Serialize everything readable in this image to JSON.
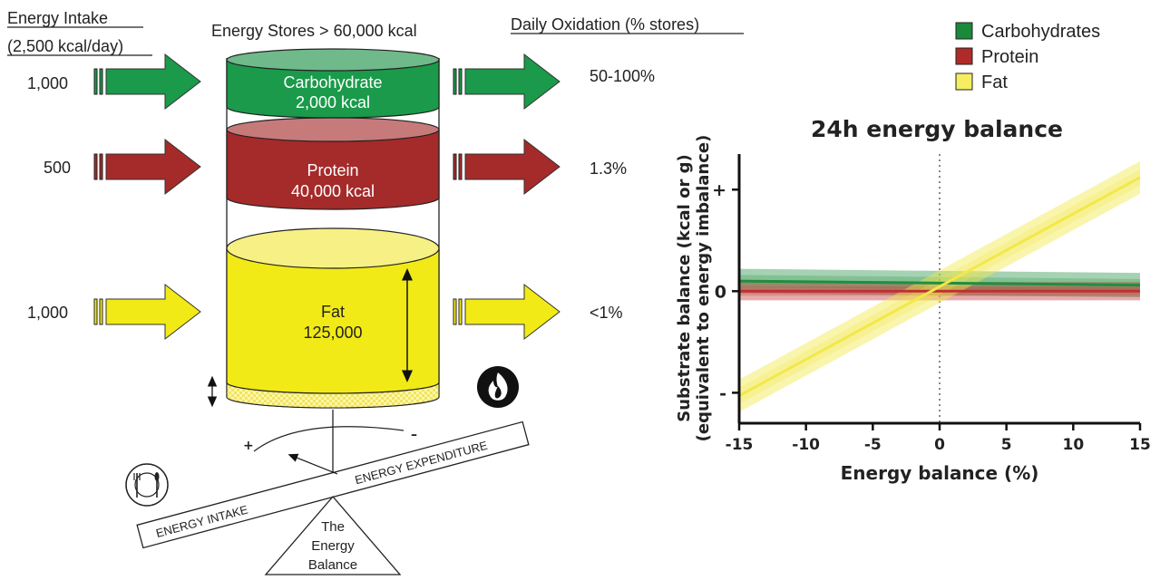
{
  "headers": {
    "intake": "Energy Intake",
    "intake_sub": "(2,500 kcal/day)",
    "stores": "Energy Stores > 60,000 kcal",
    "oxidation": "Daily Oxidation (% stores)"
  },
  "rows": [
    {
      "intake": "1,000",
      "store_name": "Carbohydrate",
      "store_value": "2,000 kcal",
      "oxidation": "50-100%",
      "color": "#1a9a4a"
    },
    {
      "intake": "500",
      "store_name": "Protein",
      "store_value": "40,000 kcal",
      "oxidation": "1.3%",
      "color": "#a52a2a"
    },
    {
      "intake": "1,000",
      "store_name": "Fat",
      "store_value": "125,000",
      "oxidation": "<1%",
      "color": "#f2ea16"
    }
  ],
  "balance": {
    "intake_label": "ENERGY INTAKE",
    "expenditure_label": "ENERGY EXPENDITURE",
    "plus": "+",
    "minus": "–",
    "triangle_line1": "The",
    "triangle_line2": "Energy",
    "triangle_line3": "Balance",
    "icons": [
      "plate-cutlery-icon",
      "flame-icon"
    ]
  },
  "legend": [
    {
      "name": "Carbohydrates",
      "color": "#1a8a3a"
    },
    {
      "name": "Protein",
      "color": "#b02a2a"
    },
    {
      "name": "Fat",
      "color": "#f5ee60"
    }
  ],
  "chart_data": {
    "type": "line",
    "title": "24h energy balance",
    "xlabel": "Energy balance (%)",
    "ylabel_line1": "Substrate balance (kcal or g)",
    "ylabel_line2": "(equivalent to energy imbalance)",
    "xlim": [
      -15,
      15
    ],
    "x_ticks": [
      "-15",
      "-10",
      "-5",
      "0",
      "5",
      "10",
      "15"
    ],
    "y_tick_labels": [
      "+",
      "0",
      "-"
    ],
    "y_tick_values": [
      1,
      0,
      -1
    ],
    "ylim": [
      -1.3,
      1.35
    ],
    "series": [
      {
        "name": "Carbohydrates",
        "x": [
          -15,
          15
        ],
        "y": [
          0.1,
          0.06
        ],
        "band": 0.12,
        "color": "#1e8f3e"
      },
      {
        "name": "Protein",
        "x": [
          -15,
          15
        ],
        "y": [
          0.0,
          0.0
        ],
        "band": 0.09,
        "color": "#c03030"
      },
      {
        "name": "Fat",
        "x": [
          -15,
          15
        ],
        "y": [
          -1.03,
          1.12
        ],
        "band": 0.16,
        "color": "#f2e84a"
      }
    ]
  }
}
